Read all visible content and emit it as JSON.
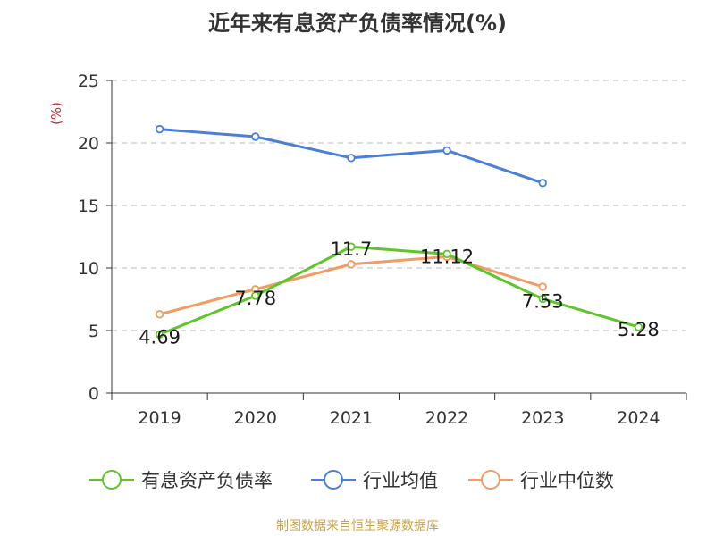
{
  "chart_data": {
    "type": "line",
    "title": "近年来有息资产负债率情况(%)",
    "ylabel": "(%)",
    "xlabel": "",
    "categories": [
      "2019",
      "2020",
      "2021",
      "2022",
      "2023",
      "2024"
    ],
    "ylim": [
      0,
      25
    ],
    "yticks": [
      0,
      5,
      10,
      15,
      20,
      25
    ],
    "grid": true,
    "legend_position": "bottom",
    "series": [
      {
        "name": "有息资产负债率",
        "color": "#5ec52a",
        "values": [
          4.69,
          7.78,
          11.7,
          11.12,
          7.53,
          5.28
        ],
        "labels": [
          "4.69",
          "7.78",
          "11.7",
          "11.12",
          "7.53",
          "5.28"
        ]
      },
      {
        "name": "行业均值",
        "color": "#4a7fd8",
        "values": [
          21.1,
          20.5,
          18.8,
          19.4,
          16.8,
          null
        ]
      },
      {
        "name": "行业中位数",
        "color": "#f49a63",
        "values": [
          6.3,
          8.3,
          10.3,
          10.9,
          8.5,
          null
        ]
      }
    ]
  },
  "source": "制图数据来自恒生聚源数据库"
}
